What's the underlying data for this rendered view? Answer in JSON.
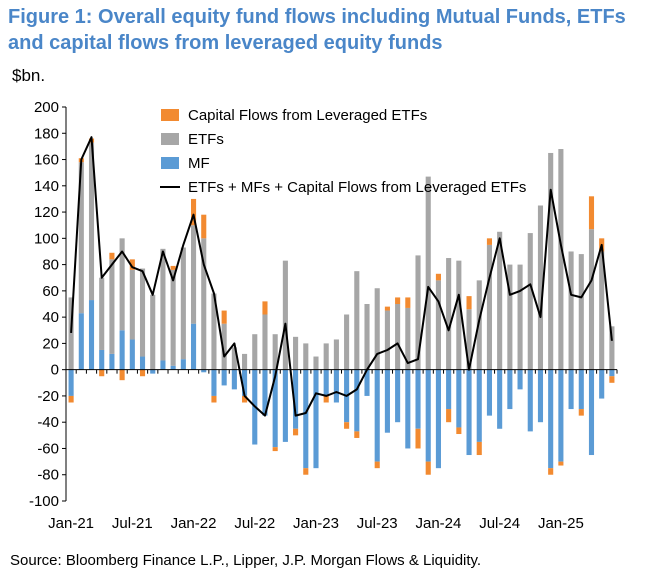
{
  "title": "Figure 1: Overall equity fund flows including Mutual Funds, ETFs and capital flows from leveraged equity funds",
  "unit_label": "$bn.",
  "source": "Source: Bloomberg Finance L.P., Lipper, J.P. Morgan Flows & Liquidity.",
  "colors": {
    "lev": "#f28a30",
    "etf": "#a6a6a6",
    "mf": "#5b9bd5",
    "line": "#000000",
    "title": "#4a86c8"
  },
  "chart_data": {
    "type": "bar",
    "ylim": [
      -100,
      200
    ],
    "yticks": [
      -100,
      -80,
      -60,
      -40,
      -20,
      0,
      20,
      40,
      60,
      80,
      100,
      120,
      140,
      160,
      180,
      200
    ],
    "x_tick_labels": [
      "Jan-21",
      "Jul-21",
      "Jan-22",
      "Jul-22",
      "Jan-23",
      "Jul-23",
      "Jan-24",
      "Jul-24",
      "Jan-25"
    ],
    "x_tick_indices": [
      0,
      6,
      12,
      18,
      24,
      30,
      36,
      42,
      48
    ],
    "legend": [
      {
        "key": "lev",
        "label": "Capital Flows from Leveraged ETFs"
      },
      {
        "key": "etf",
        "label": "ETFs"
      },
      {
        "key": "mf",
        "label": "MF"
      },
      {
        "key": "line",
        "label": "ETFs + MFs + Capital Flows from Leveraged ETFs"
      }
    ],
    "series": [
      {
        "name": "MF",
        "values": [
          -20,
          43,
          53,
          15,
          12,
          30,
          23,
          10,
          -3,
          7,
          3,
          8,
          35,
          -2,
          -20,
          -12,
          -15,
          -20,
          -57,
          -35,
          -59,
          -55,
          -45,
          -75,
          -75,
          -20,
          -25,
          -40,
          -47,
          -20,
          -70,
          -48,
          -40,
          -60,
          -45,
          -70,
          -75,
          -30,
          -44,
          -65,
          -55,
          -35,
          -45,
          -30,
          -15,
          -47,
          -40,
          -75,
          -70,
          -30,
          -30,
          -65,
          -22,
          -5
        ]
      },
      {
        "name": "ETFs",
        "values": [
          55,
          115,
          120,
          55,
          72,
          70,
          53,
          67,
          57,
          85,
          73,
          85,
          75,
          100,
          58,
          35,
          17,
          12,
          27,
          42,
          27,
          83,
          25,
          20,
          10,
          20,
          23,
          42,
          75,
          50,
          62,
          45,
          50,
          47,
          87,
          147,
          68,
          85,
          83,
          46,
          68,
          95,
          105,
          80,
          80,
          104,
          125,
          165,
          168,
          90,
          88,
          107,
          90,
          33
        ]
      },
      {
        "name": "Capital Flows from Leveraged ETFs",
        "values": [
          -5,
          3,
          3,
          -5,
          5,
          -8,
          8,
          -5,
          0,
          0,
          3,
          0,
          20,
          18,
          -5,
          10,
          0,
          -5,
          0,
          10,
          -3,
          0,
          -5,
          -5,
          0,
          -5,
          0,
          -5,
          -5,
          0,
          -5,
          3,
          5,
          8,
          -15,
          -10,
          5,
          -10,
          -5,
          10,
          -10,
          5,
          0,
          0,
          0,
          0,
          0,
          -5,
          -3,
          0,
          -5,
          25,
          10,
          -5
        ]
      },
      {
        "name": "ETFs + MFs + Capital Flows from Leveraged ETFs",
        "values": [
          28,
          160,
          177,
          70,
          80,
          90,
          78,
          75,
          57,
          90,
          68,
          95,
          118,
          80,
          58,
          10,
          20,
          -20,
          -28,
          -35,
          -5,
          35,
          -35,
          -33,
          -18,
          -20,
          -17,
          -20,
          -15,
          0,
          12,
          15,
          20,
          5,
          8,
          63,
          52,
          30,
          57,
          0,
          38,
          70,
          100,
          57,
          60,
          65,
          40,
          137,
          95,
          57,
          55,
          68,
          95,
          22
        ]
      }
    ]
  }
}
